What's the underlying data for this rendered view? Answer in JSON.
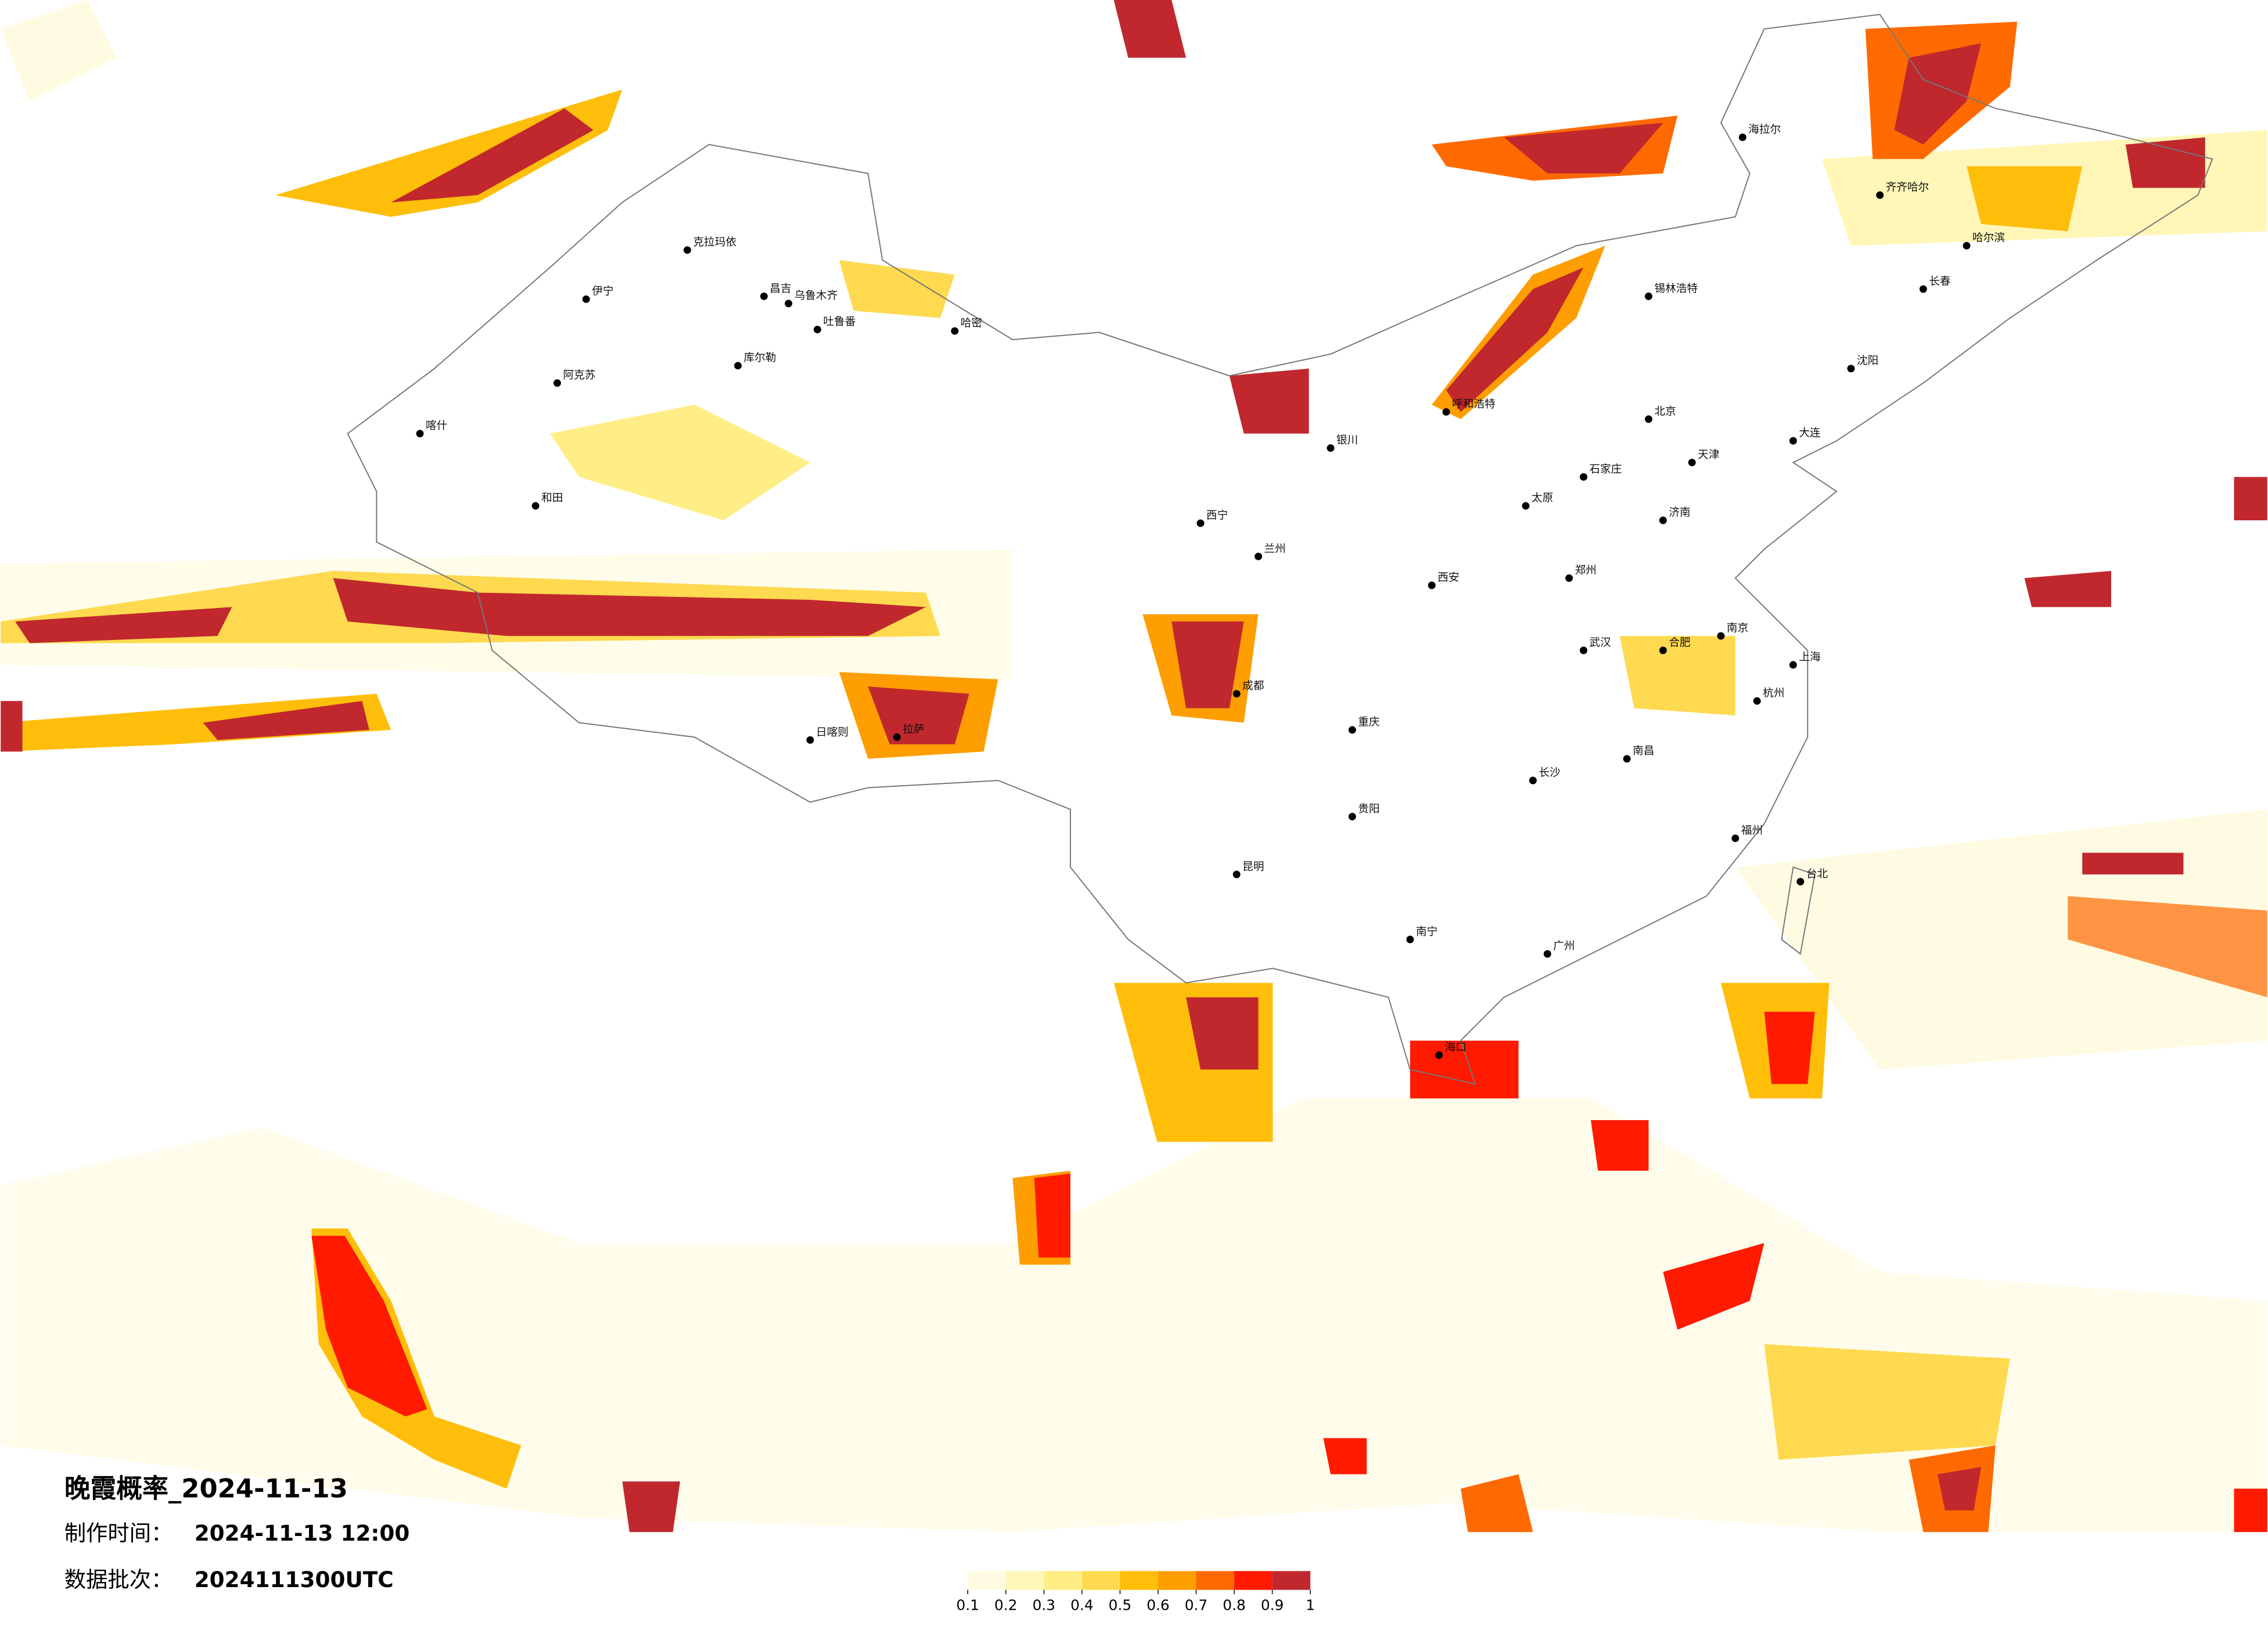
{
  "title": "晚霞概率_2024-11-13",
  "production_time": {
    "label": "制作时间：",
    "value": "2024-11-13 12:00"
  },
  "batch": {
    "label": "数据批次：",
    "value": "2024111300UTC"
  },
  "colorbar": {
    "ticks": [
      0.1,
      0.2,
      0.3,
      0.4,
      0.5,
      0.6,
      0.7,
      0.8,
      0.9,
      1
    ],
    "colors": [
      "#fffbe3",
      "#fff6b8",
      "#ffee85",
      "#ffd94f",
      "#ffbe0a",
      "#ff9e00",
      "#ff6a00",
      "#ff1a00",
      "#c0282e"
    ]
  },
  "cities": [
    "克拉玛依",
    "伊宁",
    "昌吉",
    "乌鲁木齐",
    "吐鲁番",
    "哈密",
    "库尔勒",
    "阿克苏",
    "喀什",
    "和田",
    "拉萨",
    "日喀则",
    "西宁",
    "兰州",
    "银川",
    "呼和浩特",
    "北京",
    "天津",
    "石家庄",
    "太原",
    "济南",
    "郑州",
    "西安",
    "成都",
    "重庆",
    "武汉",
    "南京",
    "上海",
    "杭州",
    "合肥",
    "长沙",
    "南昌",
    "福州",
    "贵阳",
    "昆明",
    "南宁",
    "广州",
    "海口",
    "台北",
    "哈尔滨",
    "长春",
    "沈阳",
    "大连",
    "海拉尔",
    "齐齐哈尔",
    "锡林浩特"
  ]
}
